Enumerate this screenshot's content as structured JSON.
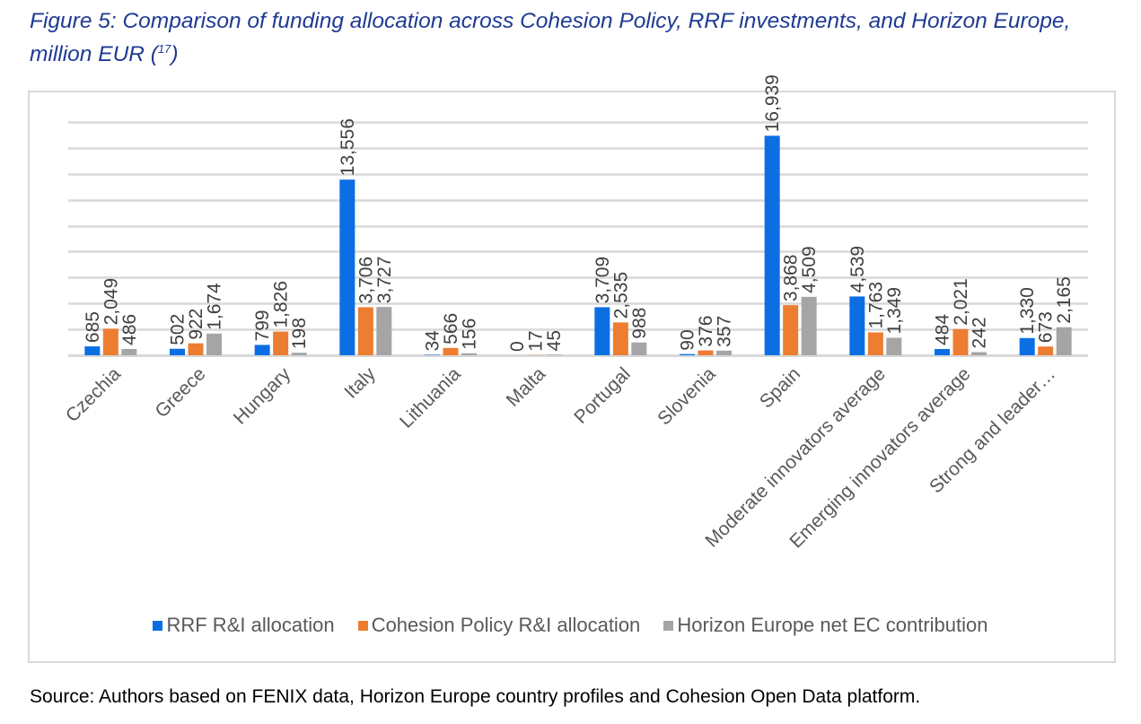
{
  "figure": {
    "title_main": "Figure 5: Comparison of funding allocation across Cohesion Policy, RRF investments, and Horizon Europe, million EUR (",
    "title_note": "17",
    "title_end": ")",
    "source": "Source: Authors based on FENIX data, Horizon Europe country profiles and Cohesion Open Data platform."
  },
  "chart_data": {
    "type": "bar",
    "title": "Comparison of funding allocation across Cohesion Policy, RRF investments, and Horizon Europe, million EUR",
    "xlabel": "",
    "ylabel": "",
    "ylim": [
      0,
      18000
    ],
    "grid": true,
    "grid_step": 2000,
    "legend_position": "bottom",
    "categories": [
      "Czechia",
      "Greece",
      "Hungary",
      "Italy",
      "Lithuania",
      "Malta",
      "Portugal",
      "Slovenia",
      "Spain",
      "Moderate innovators average",
      "Emerging innovators average",
      "Strong and leader…"
    ],
    "series": [
      {
        "name": "RRF R&I allocation",
        "color": "#0b6fe3",
        "values": [
          685,
          502,
          799,
          13556,
          34,
          0,
          3709,
          90,
          16939,
          4539,
          484,
          1330
        ],
        "labels": [
          "685",
          "502",
          "799",
          "13,556",
          "34",
          "0",
          "3,709",
          "90",
          "16,939",
          "4,539",
          "484",
          "1,330"
        ]
      },
      {
        "name": "Cohesion Policy R&I allocation",
        "color": "#ed7d31",
        "values": [
          2049,
          922,
          1826,
          3706,
          566,
          17,
          2535,
          376,
          3868,
          1763,
          2021,
          673
        ],
        "labels": [
          "2,049",
          "922",
          "1,826",
          "3,706",
          "566",
          "17",
          "2,535",
          "376",
          "3,868",
          "1,763",
          "2,021",
          "673"
        ]
      },
      {
        "name": "Horizon Europe net EC contribution",
        "color": "#a5a5a5",
        "values": [
          486,
          1674,
          198,
          3727,
          156,
          45,
          988,
          357,
          4509,
          1349,
          242,
          2165
        ],
        "labels": [
          "486",
          "1,674",
          "198",
          "3,727",
          "156",
          "45",
          "988",
          "357",
          "4,509",
          "1,349",
          "242",
          "2,165"
        ]
      }
    ]
  }
}
